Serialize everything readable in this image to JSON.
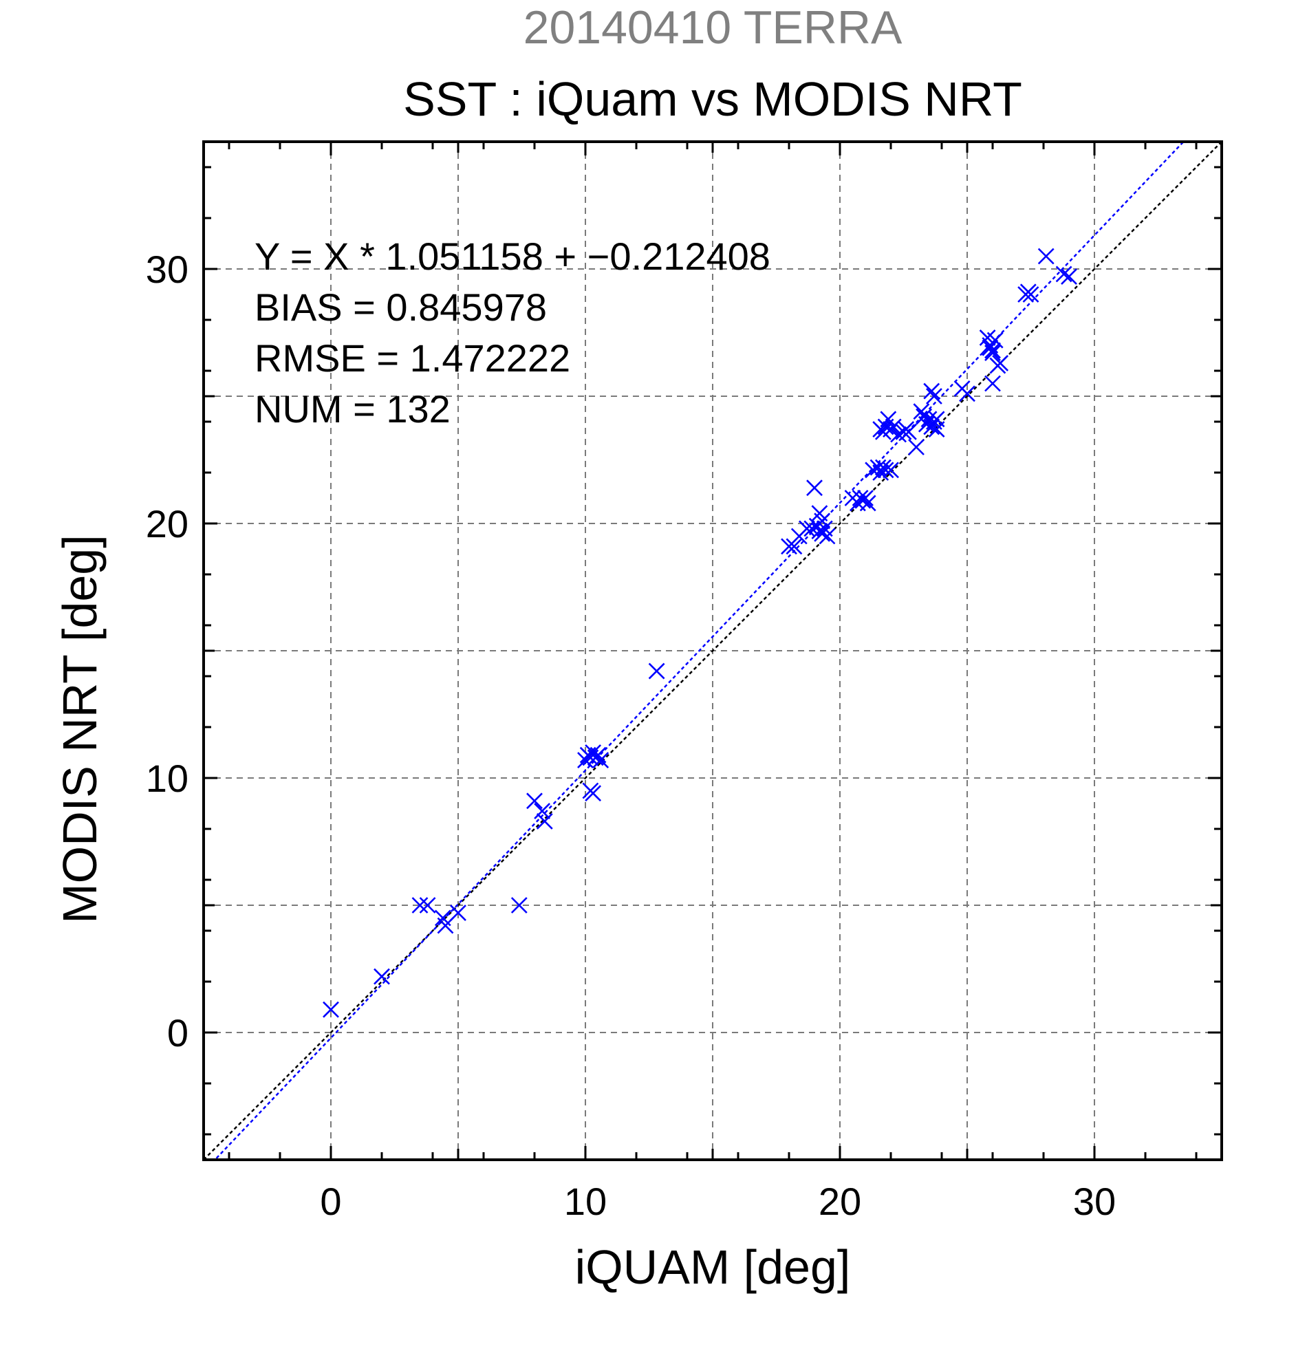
{
  "chart_data": {
    "type": "scatter",
    "supertitle": "20140410 TERRA",
    "title": "SST : iQuam vs MODIS NRT",
    "xlabel": "iQUAM [deg]",
    "ylabel": "MODIS NRT [deg]",
    "xlim": [
      -5,
      35
    ],
    "ylim": [
      -5,
      35
    ],
    "xticks": [
      0,
      10,
      20,
      30
    ],
    "yticks": [
      0,
      10,
      20,
      30
    ],
    "grid": true,
    "annotations": [
      "Y = X * 1.051158 + −0.212408",
      "BIAS = 0.845978",
      "RMSE = 1.472222",
      "NUM = 132"
    ],
    "fit": {
      "slope": 1.051158,
      "intercept": -0.212408,
      "color": "#0000ff"
    },
    "identity_line_color": "#000000",
    "marker": "x",
    "marker_color": "#0000ff",
    "series": [
      {
        "x": [
          0.0,
          2.0,
          3.5,
          3.8,
          4.5,
          4.4,
          5.0,
          7.4,
          8.0,
          8.3,
          8.4,
          10.0,
          10.1,
          10.2,
          10.3,
          10.4,
          10.5,
          10.6,
          10.2,
          10.3,
          12.8,
          18.0,
          18.2,
          18.4,
          18.7,
          18.9,
          19.0,
          19.1,
          19.2,
          19.3,
          19.4,
          19.5,
          19.2,
          19.3,
          20.5,
          20.7,
          20.8,
          20.9,
          21.0,
          21.1,
          21.3,
          21.5,
          21.6,
          21.7,
          21.8,
          22.0,
          21.6,
          21.7,
          21.8,
          21.9,
          22.0,
          22.1,
          22.3,
          22.5,
          22.6,
          22.7,
          23.0,
          23.2,
          23.3,
          23.4,
          23.5,
          23.6,
          23.7,
          23.8,
          23.6,
          23.7,
          23.8,
          24.8,
          25.0,
          25.8,
          25.9,
          26.0,
          26.1,
          25.9,
          26.0,
          26.0,
          26.2,
          26.3,
          27.3,
          27.4,
          27.5,
          28.1,
          28.8,
          29.0
        ],
        "y": [
          0.9,
          2.2,
          5.0,
          5.0,
          4.2,
          4.5,
          4.7,
          5.0,
          9.1,
          8.7,
          8.3,
          10.7,
          10.9,
          10.8,
          11.0,
          10.8,
          10.9,
          10.7,
          9.5,
          9.4,
          14.2,
          19.1,
          19.1,
          19.5,
          19.8,
          19.8,
          21.4,
          19.9,
          19.7,
          19.6,
          19.8,
          19.5,
          20.4,
          20.1,
          21.0,
          20.8,
          21.0,
          20.9,
          21.0,
          20.8,
          22.1,
          22.2,
          22.0,
          22.2,
          22.1,
          22.1,
          23.7,
          23.6,
          23.8,
          24.1,
          23.7,
          23.8,
          23.5,
          23.6,
          23.7,
          23.6,
          23.0,
          24.4,
          24.2,
          23.9,
          24.1,
          25.2,
          25.0,
          24.1,
          23.8,
          24.0,
          23.7,
          25.3,
          25.1,
          27.3,
          27.0,
          26.7,
          27.2,
          26.9,
          26.8,
          25.5,
          26.2,
          26.3,
          29.0,
          29.1,
          29.0,
          30.5,
          29.8,
          29.7
        ]
      }
    ]
  }
}
